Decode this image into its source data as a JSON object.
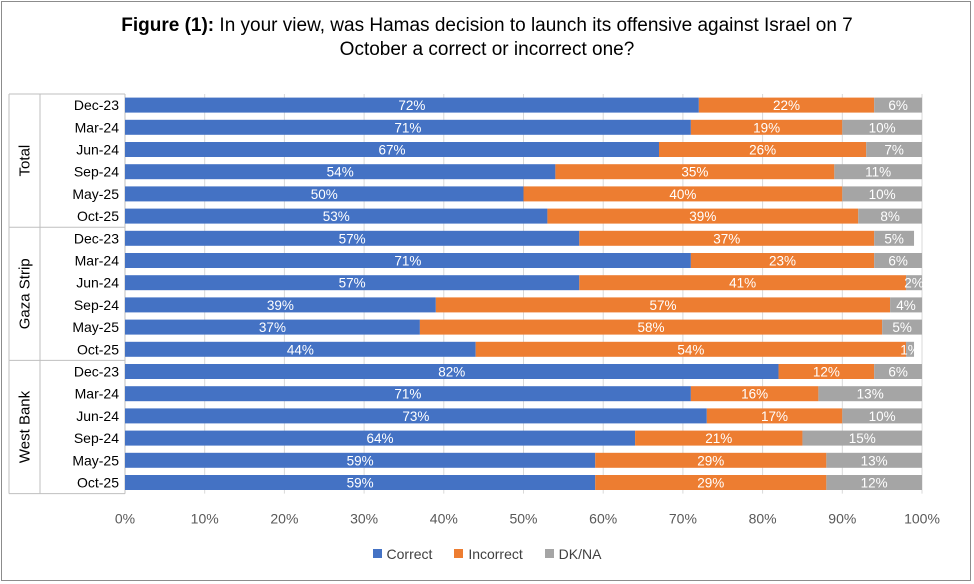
{
  "chart_data": {
    "type": "bar",
    "orientation": "horizontal-stacked",
    "title_prefix": "Figure (1):",
    "title_line1": "In your view,  was Hamas decision to launch its offensive against Israel on 7",
    "title_line2": "October a correct or incorrect one?",
    "xlim": [
      0,
      100
    ],
    "x_ticks": [
      "0%",
      "10%",
      "20%",
      "30%",
      "40%",
      "50%",
      "60%",
      "70%",
      "80%",
      "90%",
      "100%"
    ],
    "legend": [
      "Correct",
      "Incorrect",
      "DK/NA"
    ],
    "colors": {
      "correct": "#4472C4",
      "incorrect": "#ED7D31",
      "dkna": "#A5A5A5"
    },
    "groups": [
      {
        "name": "Total",
        "rows": [
          {
            "label": "Dec-23",
            "values": [
              72,
              22,
              6
            ],
            "labels": [
              "72%",
              "22%",
              "6%"
            ]
          },
          {
            "label": "Mar-24",
            "values": [
              71,
              19,
              10
            ],
            "labels": [
              "71%",
              "19%",
              "10%"
            ]
          },
          {
            "label": "Jun-24",
            "values": [
              67,
              26,
              7
            ],
            "labels": [
              "67%",
              "26%",
              "7%"
            ]
          },
          {
            "label": "Sep-24",
            "values": [
              54,
              35,
              11
            ],
            "labels": [
              "54%",
              "35%",
              "11%"
            ]
          },
          {
            "label": "May-25",
            "values": [
              50,
              40,
              10
            ],
            "labels": [
              "50%",
              "40%",
              "10%"
            ]
          },
          {
            "label": "Oct-25",
            "values": [
              53,
              39,
              8
            ],
            "labels": [
              "53%",
              "39%",
              "8%"
            ]
          }
        ]
      },
      {
        "name": "Gaza Strip",
        "rows": [
          {
            "label": "Dec-23",
            "values": [
              57,
              37,
              5
            ],
            "labels": [
              "57%",
              "37%",
              "5%"
            ]
          },
          {
            "label": "Mar-24",
            "values": [
              71,
              23,
              6
            ],
            "labels": [
              "71%",
              "23%",
              "6%"
            ]
          },
          {
            "label": "Jun-24",
            "values": [
              57,
              41,
              2
            ],
            "labels": [
              "57%",
              "41%",
              "2%"
            ]
          },
          {
            "label": "Sep-24",
            "values": [
              39,
              57,
              4
            ],
            "labels": [
              "39%",
              "57%",
              "4%"
            ]
          },
          {
            "label": "May-25",
            "values": [
              37,
              58,
              5
            ],
            "labels": [
              "37%",
              "58%",
              "5%"
            ]
          },
          {
            "label": "Oct-25",
            "values": [
              44,
              54,
              1
            ],
            "labels": [
              "44%",
              "54%",
              "1%"
            ]
          }
        ]
      },
      {
        "name": "West Bank",
        "rows": [
          {
            "label": "Dec-23",
            "values": [
              82,
              12,
              6
            ],
            "labels": [
              "82%",
              "12%",
              "6%"
            ]
          },
          {
            "label": "Mar-24",
            "values": [
              71,
              16,
              13
            ],
            "labels": [
              "71%",
              "16%",
              "13%"
            ]
          },
          {
            "label": "Jun-24",
            "values": [
              73,
              17,
              10
            ],
            "labels": [
              "73%",
              "17%",
              "10%"
            ]
          },
          {
            "label": "Sep-24",
            "values": [
              64,
              21,
              15
            ],
            "labels": [
              "64%",
              "21%",
              "15%"
            ]
          },
          {
            "label": "May-25",
            "values": [
              59,
              29,
              13
            ],
            "labels": [
              "59%",
              "29%",
              "13%"
            ]
          },
          {
            "label": "Oct-25",
            "values": [
              59,
              29,
              12
            ],
            "labels": [
              "59%",
              "29%",
              "12%"
            ]
          }
        ]
      }
    ]
  }
}
